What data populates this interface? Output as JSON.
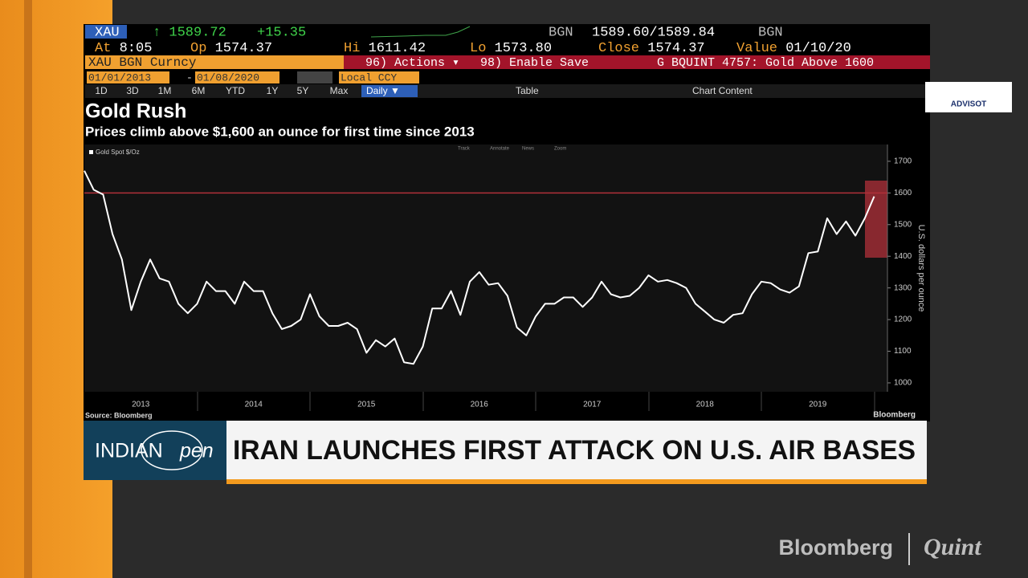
{
  "terminal": {
    "ticker": "XAU",
    "last": "↑ 1589.72",
    "change": "+15.35",
    "source1": "BGN",
    "bid_ask": "1589.60/1589.84",
    "source2": "BGN",
    "stats": [
      {
        "label": "At",
        "value": "8:05"
      },
      {
        "label": "Op",
        "value": "1574.37"
      },
      {
        "label": "Hi",
        "value": "1611.42"
      },
      {
        "label": "Lo",
        "value": "1573.80"
      },
      {
        "label": "Close",
        "value": "1574.37"
      },
      {
        "label": "Value",
        "value": "01/10/20"
      }
    ],
    "security": "XAU BGN Curncy",
    "actions": "96) Actions ▾",
    "save": "98) Enable Save",
    "alert": "G BQUINT 4757: Gold Above 1600",
    "start_date": "01/01/2013",
    "date_separator": "-",
    "end_date": "01/08/2020",
    "currency": "Local CCY",
    "periods": [
      "1D",
      "3D",
      "1M",
      "6M",
      "YTD",
      "1Y",
      "5Y",
      "Max"
    ],
    "frequency": "Daily ▼",
    "table": "Table",
    "chart_content": "Chart Content",
    "chart_tools": [
      "Track",
      "Annotate",
      "News",
      "Zoom"
    ]
  },
  "chart_data": {
    "type": "line",
    "title": "Gold Rush",
    "subtitle": "Prices climb above $1,600 an ounce for first time since 2013",
    "ylabel": "U.S. dollars per ounce",
    "source": "Source: Bloomberg",
    "brand": "Bloomberg",
    "categories": [
      null,
      null,
      null,
      null,
      null,
      null,
      "2013",
      null,
      null,
      null,
      null,
      null,
      null,
      null,
      null,
      null,
      null,
      null,
      "2014",
      null,
      null,
      null,
      null,
      null,
      null,
      null,
      null,
      null,
      null,
      null,
      "2015",
      null,
      null,
      null,
      null,
      null,
      null,
      null,
      null,
      null,
      null,
      null,
      "2016",
      null,
      null,
      null,
      null,
      null,
      null,
      null,
      null,
      null,
      null,
      null,
      "2017",
      null,
      null,
      null,
      null,
      null,
      null,
      null,
      null,
      null,
      null,
      null,
      "2018",
      null,
      null,
      null,
      null,
      null,
      null,
      null,
      null,
      null,
      null,
      null,
      "2019",
      null,
      null,
      null,
      null,
      null,
      null
    ],
    "series": [
      {
        "name": "Gold Spot $/Oz",
        "color": "#ffffff",
        "values": [
          1670,
          1610,
          1595,
          1470,
          1390,
          1230,
          1320,
          1390,
          1330,
          1320,
          1250,
          1220,
          1250,
          1320,
          1290,
          1290,
          1250,
          1320,
          1290,
          1290,
          1220,
          1170,
          1180,
          1200,
          1280,
          1210,
          1180,
          1180,
          1190,
          1170,
          1095,
          1135,
          1115,
          1140,
          1065,
          1060,
          1115,
          1235,
          1235,
          1290,
          1215,
          1320,
          1350,
          1310,
          1315,
          1275,
          1175,
          1150,
          1210,
          1250,
          1250,
          1270,
          1270,
          1240,
          1270,
          1320,
          1280,
          1270,
          1275,
          1300,
          1340,
          1320,
          1325,
          1315,
          1300,
          1250,
          1225,
          1200,
          1190,
          1215,
          1220,
          1280,
          1320,
          1315,
          1295,
          1285,
          1305,
          1410,
          1415,
          1520,
          1470,
          1510,
          1465,
          1520,
          1589
        ]
      }
    ],
    "reference_line": 1600,
    "reference_color": "#b0303a",
    "ylim": [
      972,
      1753
    ],
    "yticks": [
      1000,
      1100,
      1200,
      1300,
      1400,
      1500,
      1600,
      1700
    ]
  },
  "ticker_bar": {
    "channel": "INDIAN",
    "channel_suffix": "pen",
    "headline": "IRAN LAUNCHES FIRST ATTACK ON U.S. AIR BASES"
  },
  "logo": "ADVISOT",
  "watermark": {
    "left": "Bloomberg",
    "right": "Quint"
  }
}
